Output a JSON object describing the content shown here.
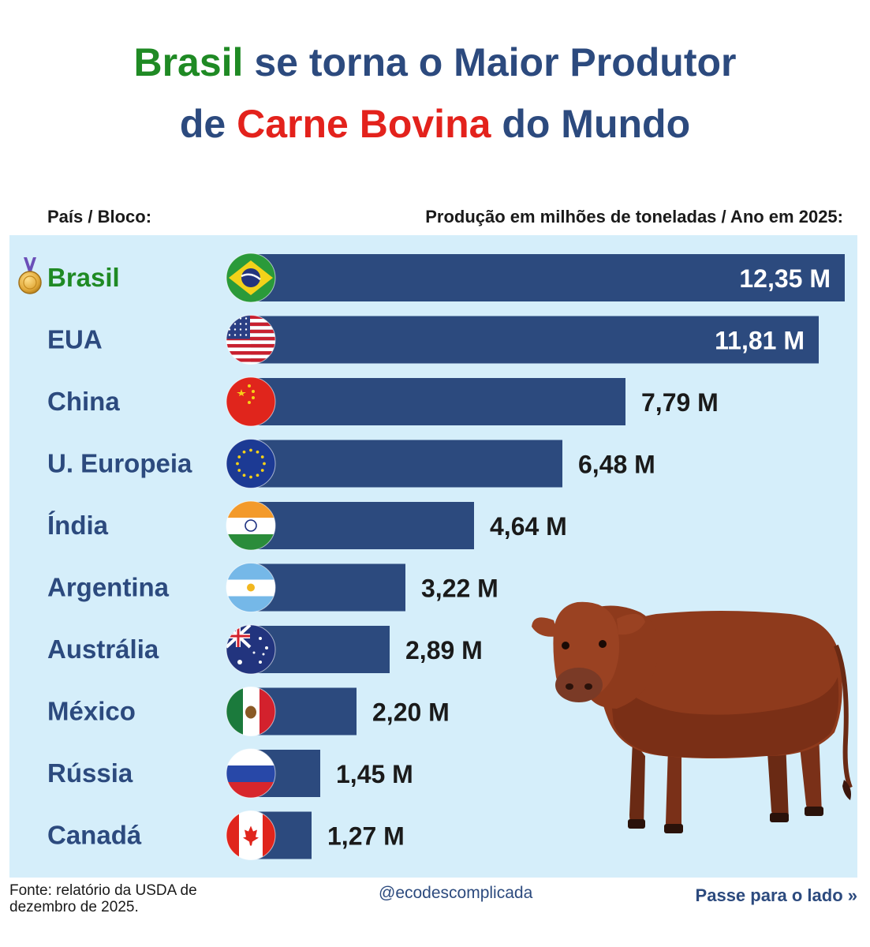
{
  "title": {
    "part1": "Brasil",
    "part2": " se torna o Maior Produtor",
    "part3": "de ",
    "part4": "Carne Bovina",
    "part5": " do Mundo"
  },
  "header": {
    "left": "País / Bloco:",
    "right": "Produção em milhões de toneladas / Ano em 2025:"
  },
  "chart_data": {
    "type": "bar",
    "orientation": "horizontal",
    "title": "Brasil se torna o Maior Produtor de Carne Bovina do Mundo",
    "xlabel": "Produção em milhões de toneladas / Ano em 2025:",
    "ylabel": "País / Bloco:",
    "categories": [
      "Brasil",
      "EUA",
      "China",
      "U. Europeia",
      "Índia",
      "Argentina",
      "Austrália",
      "México",
      "Rússia",
      "Canadá"
    ],
    "values": [
      12.35,
      11.81,
      7.79,
      6.48,
      4.64,
      3.22,
      2.89,
      2.2,
      1.45,
      1.27
    ],
    "labels": [
      "12,35 M",
      "11,81 M",
      "7,79 M",
      "6,48 M",
      "4,64 M",
      "3,22 M",
      "2,89 M",
      "2,20 M",
      "1,45 M",
      "1,27 M"
    ],
    "flags": [
      "brazil-flag-icon",
      "usa-flag-icon",
      "china-flag-icon",
      "eu-flag-icon",
      "india-flag-icon",
      "argentina-flag-icon",
      "australia-flag-icon",
      "mexico-flag-icon",
      "russia-flag-icon",
      "canada-flag-icon"
    ],
    "highlight": "Brasil",
    "xlim": [
      0,
      12.35
    ],
    "colors": {
      "bar": "#2c4a7e",
      "panel": "#d5eefa",
      "highlight_text": "#1f8a24",
      "category_text": "#2c4a7e",
      "value_inside": "#ffffff",
      "value_outside": "#1a1a1a"
    }
  },
  "icons": {
    "medal": "gold-medal-icon",
    "cow": "cow-illustration"
  },
  "footer": {
    "source": "Fonte: relatório da USDA de dezembro de 2025.",
    "handle": "@ecodescomplicada",
    "next": "Passe para o lado",
    "next_icon": "double-chevron-right-icon"
  }
}
